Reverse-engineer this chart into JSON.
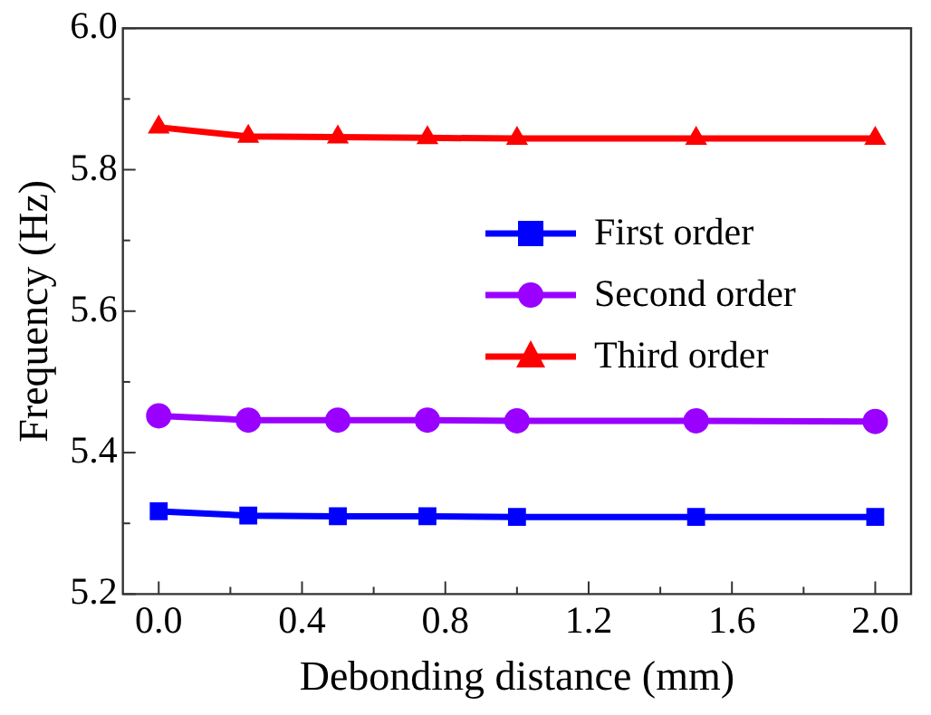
{
  "chart_data": {
    "type": "line",
    "xlabel": "Debonding distance (mm)",
    "ylabel": "Frequency (Hz)",
    "x": [
      0,
      0.25,
      0.5,
      0.75,
      1.0,
      1.5,
      2.0
    ],
    "series": [
      {
        "name": "First order",
        "color": "#0000ff",
        "marker": "square",
        "values": [
          5.317,
          5.311,
          5.31,
          5.31,
          5.309,
          5.309,
          5.309
        ]
      },
      {
        "name": "Second order",
        "color": "#9900ff",
        "marker": "circle",
        "values": [
          5.452,
          5.446,
          5.446,
          5.446,
          5.445,
          5.445,
          5.444
        ]
      },
      {
        "name": "Third order",
        "color": "#ff0000",
        "marker": "triangle",
        "values": [
          5.86,
          5.847,
          5.846,
          5.845,
          5.844,
          5.844,
          5.844
        ]
      }
    ],
    "xlim": [
      -0.1,
      2.1
    ],
    "xticks": [
      {
        "value": 0.0,
        "label": "0.0"
      },
      {
        "value": 0.2,
        "label": null
      },
      {
        "value": 0.4,
        "label": "0.4"
      },
      {
        "value": 0.6,
        "label": null
      },
      {
        "value": 0.8,
        "label": "0.8"
      },
      {
        "value": 1.0,
        "label": null
      },
      {
        "value": 1.2,
        "label": "1.2"
      },
      {
        "value": 1.4,
        "label": null
      },
      {
        "value": 1.6,
        "label": "1.6"
      },
      {
        "value": 1.8,
        "label": null
      },
      {
        "value": 2.0,
        "label": "2.0"
      }
    ],
    "ylim": [
      5.2,
      6.0
    ],
    "yticks": [
      {
        "value": 5.2,
        "label": "5.2"
      },
      {
        "value": 5.3,
        "label": null
      },
      {
        "value": 5.4,
        "label": "5.4"
      },
      {
        "value": 5.5,
        "label": null
      },
      {
        "value": 5.6,
        "label": "5.6"
      },
      {
        "value": 5.7,
        "label": null
      },
      {
        "value": 5.8,
        "label": "5.8"
      },
      {
        "value": 5.9,
        "label": null
      },
      {
        "value": 6.0,
        "label": "6.0"
      }
    ],
    "grid": false,
    "legend": "right",
    "line_style": "solid"
  }
}
